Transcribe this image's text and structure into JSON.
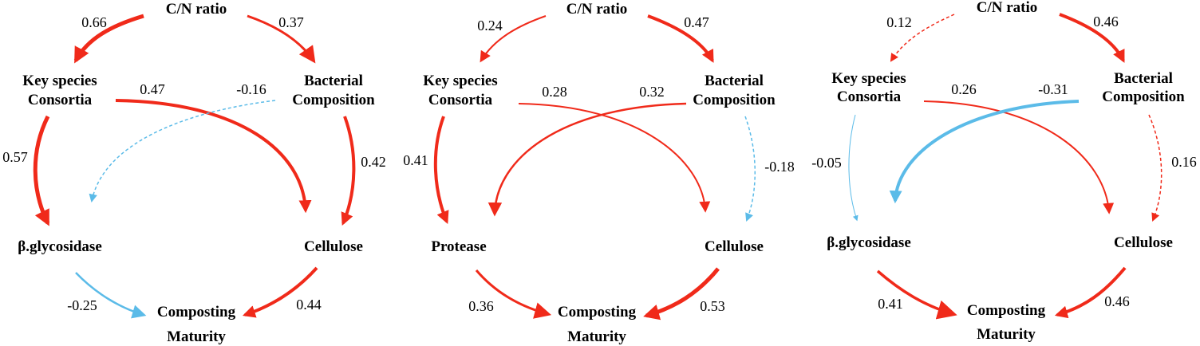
{
  "colors": {
    "positive": "#f02a1a",
    "negative": "#5bbbe8"
  },
  "panels": [
    {
      "nodes": {
        "cn": "C/N ratio",
        "key1": "Key species",
        "key2": "Consortia",
        "bac1": "Bacterial",
        "bac2": "Composition",
        "left": "β.glycosidase",
        "cell": "Cellulose",
        "mat1": "Composting",
        "mat2": "Maturity"
      },
      "coefficients": {
        "cn_key": "0.66",
        "cn_bac": "0.37",
        "key_cross": "0.47",
        "bac_cross": "-0.16",
        "key_left": "0.57",
        "bac_cell": "0.42",
        "left_mat": "-0.25",
        "cell_mat": "0.44"
      }
    },
    {
      "nodes": {
        "cn": "C/N ratio",
        "key1": "Key species",
        "key2": "Consortia",
        "bac1": "Bacterial",
        "bac2": "Composition",
        "left": "Protease",
        "cell": "Cellulose",
        "mat1": "Composting",
        "mat2": "Maturity"
      },
      "coefficients": {
        "cn_key": "0.24",
        "cn_bac": "0.47",
        "key_cross": "0.28",
        "bac_cross": "0.32",
        "key_left": "0.41",
        "bac_cell": "-0.18",
        "left_mat": "0.36",
        "cell_mat": "0.53"
      }
    },
    {
      "nodes": {
        "cn": "C/N ratio",
        "key1": "Key species",
        "key2": "Consortia",
        "bac1": "Bacterial",
        "bac2": "Composition",
        "left": "β.glycosidase",
        "cell": "Cellulose",
        "mat1": "Composting",
        "mat2": "Maturity"
      },
      "coefficients": {
        "cn_key": "0.12",
        "cn_bac": "0.46",
        "key_cross": "0.26",
        "bac_cross": "-0.31",
        "key_left": "-0.05",
        "bac_cell": "0.16",
        "left_mat": "0.41",
        "cell_mat": "0.46"
      }
    }
  ]
}
